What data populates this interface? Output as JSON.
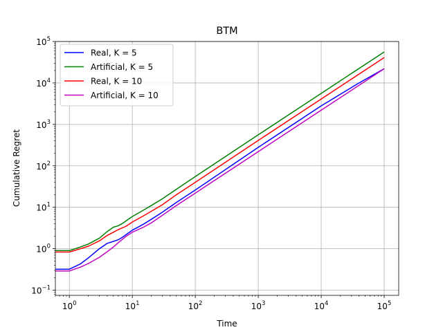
{
  "chart_data": {
    "type": "line",
    "title": "BTM",
    "xlabel": "Time",
    "ylabel": "Cumulative Regret",
    "xscale": "log",
    "yscale": "log",
    "xlim": [
      0.6,
      170000
    ],
    "ylim": [
      0.075,
      100000
    ],
    "grid": true,
    "legend_location": "upper-left",
    "x_ticks": [
      {
        "base": "10",
        "exp": "0",
        "value": 1
      },
      {
        "base": "10",
        "exp": "1",
        "value": 10
      },
      {
        "base": "10",
        "exp": "2",
        "value": 100
      },
      {
        "base": "10",
        "exp": "3",
        "value": 1000
      },
      {
        "base": "10",
        "exp": "4",
        "value": 10000
      },
      {
        "base": "10",
        "exp": "5",
        "value": 100000
      }
    ],
    "y_ticks": [
      {
        "base": "10",
        "exp": "−1",
        "value": 0.1
      },
      {
        "base": "10",
        "exp": "0",
        "value": 1
      },
      {
        "base": "10",
        "exp": "1",
        "value": 10
      },
      {
        "base": "10",
        "exp": "2",
        "value": 100
      },
      {
        "base": "10",
        "exp": "3",
        "value": 1000
      },
      {
        "base": "10",
        "exp": "4",
        "value": 10000
      },
      {
        "base": "10",
        "exp": "5",
        "value": 100000
      }
    ],
    "series": [
      {
        "name": "Real, K = 5",
        "color": "#0000ff",
        "points": [
          [
            0.6,
            0.32
          ],
          [
            1,
            0.32
          ],
          [
            1.5,
            0.43
          ],
          [
            2,
            0.6
          ],
          [
            3,
            1.0
          ],
          [
            4,
            1.35
          ],
          [
            5,
            1.5
          ],
          [
            6,
            1.65
          ],
          [
            7,
            1.9
          ],
          [
            8,
            2.2
          ],
          [
            10,
            2.8
          ],
          [
            15,
            3.9
          ],
          [
            20,
            5.1
          ],
          [
            30,
            7.6
          ],
          [
            50,
            13
          ],
          [
            100,
            26
          ],
          [
            1000,
            280
          ],
          [
            10000,
            2800
          ],
          [
            40000,
            10000
          ],
          [
            100000,
            22000
          ]
        ]
      },
      {
        "name": "Artificial, K = 5",
        "color": "#008000",
        "points": [
          [
            0.6,
            0.9
          ],
          [
            1,
            0.9
          ],
          [
            1.5,
            1.1
          ],
          [
            2,
            1.3
          ],
          [
            3,
            1.8
          ],
          [
            4,
            2.6
          ],
          [
            5,
            3.3
          ],
          [
            6,
            3.6
          ],
          [
            7,
            4.1
          ],
          [
            8,
            4.7
          ],
          [
            10,
            6.0
          ],
          [
            15,
            8.5
          ],
          [
            20,
            11
          ],
          [
            30,
            16
          ],
          [
            50,
            27
          ],
          [
            100,
            55
          ],
          [
            1000,
            560
          ],
          [
            10000,
            5600
          ],
          [
            100000,
            56000
          ]
        ]
      },
      {
        "name": "Real, K = 10",
        "color": "#ff0000",
        "points": [
          [
            0.6,
            0.83
          ],
          [
            1,
            0.83
          ],
          [
            1.5,
            1.0
          ],
          [
            2,
            1.15
          ],
          [
            3,
            1.55
          ],
          [
            4,
            2.1
          ],
          [
            5,
            2.5
          ],
          [
            6,
            2.9
          ],
          [
            7,
            3.2
          ],
          [
            8,
            3.5
          ],
          [
            10,
            4.4
          ],
          [
            15,
            6.2
          ],
          [
            20,
            8.0
          ],
          [
            30,
            11.5
          ],
          [
            50,
            20
          ],
          [
            100,
            40
          ],
          [
            1000,
            410
          ],
          [
            10000,
            4100
          ],
          [
            100000,
            41000
          ]
        ]
      },
      {
        "name": "Artificial, K = 10",
        "color": "#bf00bf",
        "points": [
          [
            0.6,
            0.29
          ],
          [
            1,
            0.29
          ],
          [
            1.5,
            0.36
          ],
          [
            2,
            0.44
          ],
          [
            3,
            0.62
          ],
          [
            4,
            0.85
          ],
          [
            5,
            1.1
          ],
          [
            6,
            1.4
          ],
          [
            7,
            1.7
          ],
          [
            8,
            2.0
          ],
          [
            10,
            2.5
          ],
          [
            15,
            3.3
          ],
          [
            20,
            4.2
          ],
          [
            30,
            6.4
          ],
          [
            50,
            11
          ],
          [
            100,
            22
          ],
          [
            1000,
            220
          ],
          [
            10000,
            2200
          ],
          [
            100000,
            22000
          ]
        ]
      }
    ]
  }
}
